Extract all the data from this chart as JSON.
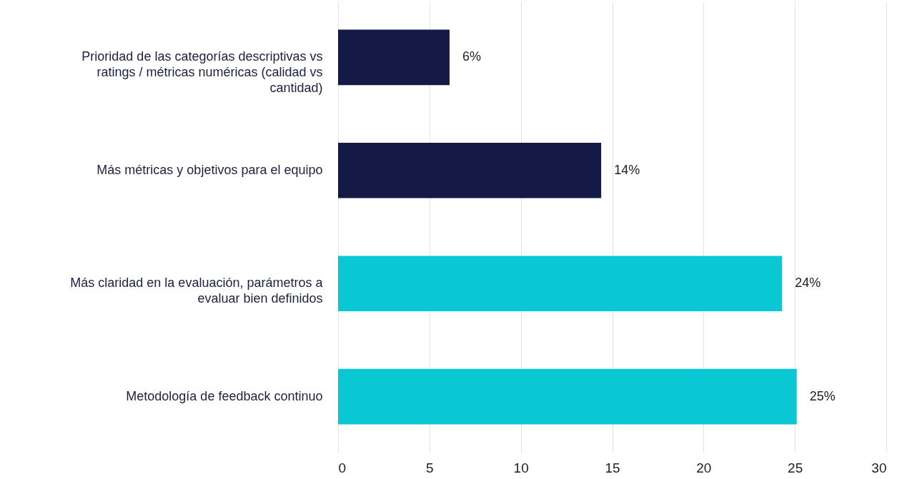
{
  "chart_data": {
    "type": "bar",
    "orientation": "horizontal",
    "categories": [
      "Prioridad de las categorías descriptivas vs ratings / métricas numéricas (calidad vs cantidad)",
      "Más métricas y objetivos para el equipo",
      "Más claridad en la evaluación, parámetros a evaluar bien definidos",
      "Metodología de feedback continuo"
    ],
    "values": [
      6.1,
      14.4,
      24.3,
      25.1
    ],
    "colors": [
      "#141a45",
      "#141a45",
      "#0ac8d3",
      "#0ac8d3"
    ],
    "value_labels": [
      "6%",
      "14%",
      "24%",
      "25%"
    ],
    "xlim": [
      0,
      30
    ],
    "xticks": [
      0,
      5,
      10,
      15,
      20,
      25,
      30
    ],
    "grid": "x"
  }
}
